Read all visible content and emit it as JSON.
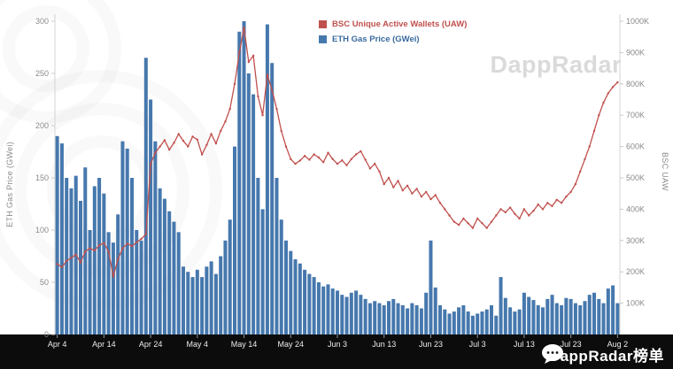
{
  "watermark": {
    "text": "DappRadar"
  },
  "footer": {
    "brand_text": "DappRadar榜单"
  },
  "chart_data": {
    "type": "bar+line",
    "title": "",
    "left_axis": {
      "label": "ETH Gas Price (GWei)",
      "range": [
        0,
        300
      ],
      "ticks": [
        0,
        50,
        100,
        150,
        200,
        250,
        300
      ]
    },
    "right_axis": {
      "label": "BSC UAW",
      "range": [
        0,
        1000
      ],
      "unit": "K",
      "ticks": [
        "100K",
        "200K",
        "300K",
        "400K",
        "500K",
        "600K",
        "700K",
        "800K",
        "900K",
        "1000K"
      ]
    },
    "x_ticks": [
      "Apr 4",
      "Apr 14",
      "Apr 24",
      "May 4",
      "May 14",
      "May 24",
      "Jun 3",
      "Jun 13",
      "Jun 23",
      "Jul 3",
      "Jul 13",
      "Jul 23",
      "Aug 2"
    ],
    "grid": false,
    "legend_position": "top-center",
    "series": [
      {
        "name": "BSC Unique Active Wallets (UAW)",
        "type": "line",
        "axis": "right",
        "color": "#c0504d",
        "values_unit": "thousands",
        "values": [
          225,
          215,
          235,
          245,
          255,
          230,
          265,
          275,
          268,
          285,
          292,
          265,
          185,
          240,
          275,
          290,
          282,
          295,
          305,
          320,
          545,
          580,
          600,
          620,
          590,
          612,
          640,
          618,
          600,
          632,
          622,
          575,
          605,
          640,
          610,
          650,
          680,
          720,
          800,
          900,
          980,
          870,
          890,
          760,
          700,
          830,
          780,
          720,
          650,
          600,
          560,
          545,
          555,
          570,
          558,
          575,
          565,
          550,
          580,
          560,
          545,
          556,
          540,
          560,
          575,
          585,
          558,
          530,
          545,
          520,
          480,
          500,
          470,
          490,
          460,
          475,
          450,
          465,
          440,
          455,
          432,
          445,
          420,
          400,
          380,
          360,
          350,
          370,
          355,
          340,
          370,
          355,
          340,
          360,
          380,
          400,
          390,
          405,
          385,
          370,
          400,
          380,
          395,
          415,
          400,
          420,
          410,
          430,
          420,
          440,
          455,
          480,
          520,
          560,
          600,
          650,
          700,
          740,
          770,
          790,
          805
        ]
      },
      {
        "name": "ETH Gas Price (GWei)",
        "type": "bar",
        "axis": "left",
        "color": "#4678ad",
        "values_unit": "GWei",
        "values": [
          190,
          183,
          150,
          140,
          152,
          128,
          160,
          100,
          142,
          150,
          135,
          98,
          88,
          115,
          185,
          178,
          150,
          100,
          90,
          265,
          225,
          185,
          140,
          130,
          118,
          108,
          98,
          65,
          60,
          55,
          62,
          55,
          65,
          70,
          58,
          75,
          90,
          110,
          180,
          290,
          300,
          250,
          230,
          150,
          120,
          297,
          260,
          150,
          110,
          90,
          80,
          72,
          68,
          62,
          58,
          55,
          50,
          46,
          48,
          44,
          42,
          38,
          36,
          40,
          42,
          38,
          34,
          30,
          32,
          30,
          28,
          32,
          34,
          30,
          28,
          25,
          30,
          28,
          25,
          40,
          90,
          45,
          28,
          24,
          20,
          22,
          26,
          28,
          22,
          18,
          20,
          22,
          24,
          28,
          18,
          55,
          35,
          26,
          22,
          24,
          40,
          36,
          33,
          28,
          26,
          34,
          38,
          30,
          28,
          35,
          34,
          30,
          28,
          32,
          38,
          40,
          34,
          30,
          44,
          47,
          30
        ]
      }
    ]
  }
}
